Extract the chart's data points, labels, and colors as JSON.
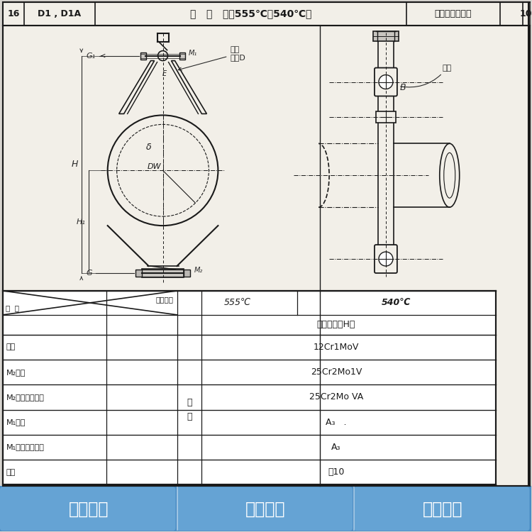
{
  "bg_color": "#d8d5d0",
  "paper_color": "#f2efe8",
  "line_color": "#1a1a1a",
  "dim_color": "#2a2a2a",
  "table_bg": "#ffffff",
  "header_text_16": "16",
  "header_text_code": "D1 , D1A",
  "header_text_title": "长   管   夹（555℃；540℃）",
  "header_text_dept": "管部（吊架类）",
  "header_text_10": "10",
  "banner_color_dark": "#4a8cc4",
  "banner_color_light": "#78b4e0",
  "banner_texts": [
    "实体工厂",
    "品质保证",
    "加工定制"
  ],
  "table_col1_items": [
    "管夹",
    "M₂螺栓",
    "M₂螺母、扁螺母",
    "M₁螺栓",
    "M₁螺母、扁螺母",
    "套管"
  ],
  "table_mat_items": [
    "12Cr1MoV",
    "25Cr2Mo1V",
    "25Cr2Mo VA",
    "A₃   .",
    "A₃",
    "钢10"
  ]
}
